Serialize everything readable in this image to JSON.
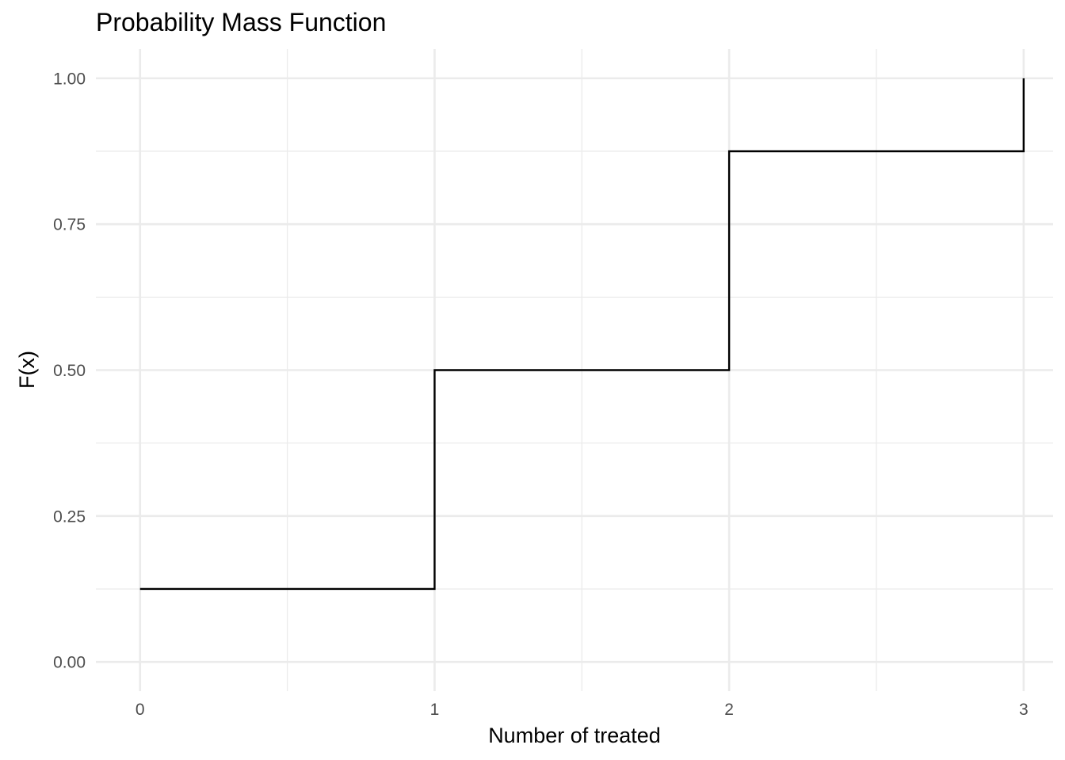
{
  "chart_data": {
    "type": "line",
    "subtype": "step",
    "title": "Probability Mass Function",
    "xlabel": "Number of treated",
    "ylabel": "F(x)",
    "xlim": [
      -0.15,
      3.1
    ],
    "ylim": [
      -0.05,
      1.05
    ],
    "x_ticks": [
      0,
      1,
      2,
      3
    ],
    "x_tick_labels": [
      "0",
      "1",
      "2",
      "3"
    ],
    "y_ticks": [
      0,
      0.25,
      0.5,
      0.75,
      1.0
    ],
    "y_tick_labels": [
      "0.00",
      "0.25",
      "0.50",
      "0.75",
      "1.00"
    ],
    "x_minor_ticks": [
      0.5,
      1.5,
      2.5
    ],
    "y_minor_ticks": [
      0.125,
      0.375,
      0.625,
      0.875
    ],
    "grid": true,
    "legend": "none",
    "series": [
      {
        "x": [
          0,
          1,
          2,
          3
        ],
        "y": [
          0.125,
          0.5,
          0.875,
          1.0
        ],
        "color": "#000000"
      }
    ]
  }
}
